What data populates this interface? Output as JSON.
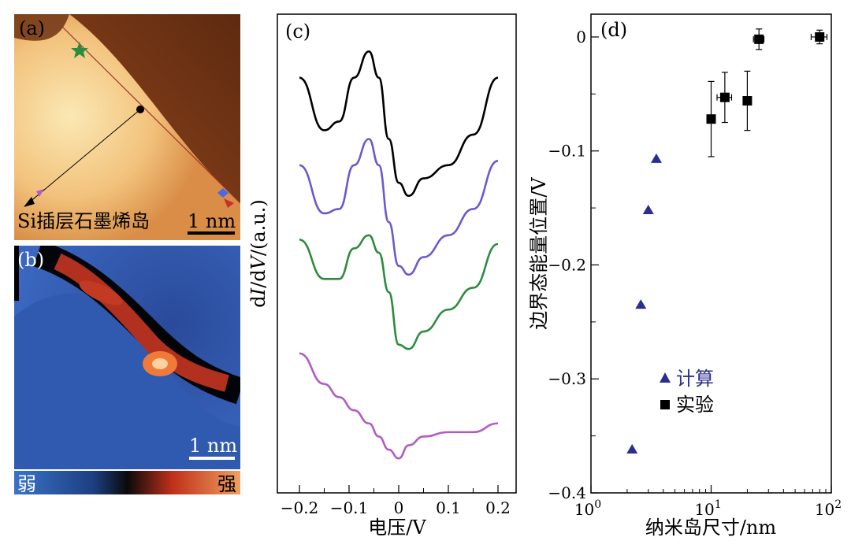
{
  "panel_a": {
    "label": "(a)",
    "caption": "Si插层石墨烯岛",
    "scalebar": "1 nm"
  },
  "panel_b": {
    "label": "(b)",
    "scalebar": "1 nm",
    "colorbar_low": "弱",
    "colorbar_high": "强"
  },
  "panel_c": {
    "label": "(c)",
    "ylabel_prefix": "d",
    "ylabel_I": "I",
    "ylabel_mid": "/d",
    "ylabel_V": "V",
    "ylabel_suffix": "/(a.u.)",
    "xlabel": "电压/V",
    "xticks": [
      "−0.2",
      "−0.1",
      "0",
      "0.1",
      "0.2"
    ]
  },
  "panel_d": {
    "label": "(d)",
    "ylabel": "边界态能量位置/V",
    "xlabel": "纳米岛尺寸/nm",
    "yticks": [
      "0",
      "−0.1",
      "−0.2",
      "−0.3",
      "−0.4"
    ],
    "xticks": [
      "10",
      "10",
      "10"
    ],
    "xtick_exps": [
      "0",
      "1",
      "2"
    ],
    "legend": [
      "计算",
      "实验"
    ]
  },
  "chart_data": [
    {
      "type": "line",
      "title": "(c)",
      "xlabel": "电压/V",
      "ylabel": "dI/dV/(a.u.)",
      "xlim": [
        -0.2,
        0.2
      ],
      "x": [
        -0.2,
        -0.15,
        -0.12,
        -0.09,
        -0.06,
        -0.04,
        -0.02,
        0,
        0.02,
        0.05,
        0.1,
        0.15,
        0.2
      ],
      "series": [
        {
          "name": "black",
          "color": "#000000",
          "values": [
            5.6,
            4.4,
            4.6,
            5.6,
            6.2,
            5.6,
            4.2,
            3.2,
            2.9,
            3.3,
            3.6,
            4.3,
            5.6
          ]
        },
        {
          "name": "purple",
          "color": "#6a5acd",
          "values": [
            3.6,
            2.5,
            2.6,
            3.6,
            4.2,
            3.6,
            2.3,
            1.3,
            1.1,
            1.5,
            2.0,
            2.6,
            3.7
          ]
        },
        {
          "name": "green",
          "color": "#2e8b3e",
          "values": [
            1.9,
            1.0,
            1.0,
            1.7,
            2.0,
            1.6,
            0.7,
            -0.5,
            -0.6,
            -0.2,
            0.3,
            0.8,
            1.8
          ]
        },
        {
          "name": "magenta",
          "color": "#b05cc0",
          "values": [
            -0.7,
            -1.4,
            -1.7,
            -2.0,
            -2.3,
            -2.6,
            -2.9,
            -3.1,
            -2.8,
            -2.6,
            -2.5,
            -2.5,
            -2.3
          ]
        }
      ]
    },
    {
      "type": "scatter",
      "title": "(d)",
      "xlabel": "纳米岛尺寸/nm",
      "ylabel": "边界态能量位置/V",
      "xscale": "log",
      "xlim": [
        1,
        100
      ],
      "ylim": [
        -0.4,
        0.02
      ],
      "series": [
        {
          "name": "计算",
          "marker": "triangle",
          "color": "#2a2f8f",
          "points": [
            [
              2.2,
              -0.362
            ],
            [
              2.6,
              -0.235
            ],
            [
              3.0,
              -0.152
            ],
            [
              3.5,
              -0.107
            ]
          ]
        },
        {
          "name": "实验",
          "marker": "square",
          "color": "#000000",
          "points": [
            [
              10,
              -0.072
            ],
            [
              13,
              -0.053
            ],
            [
              20,
              -0.056
            ],
            [
              25,
              -0.002
            ],
            [
              80,
              0.0
            ]
          ],
          "yerr": [
            0.033,
            0.022,
            0.026,
            0.009,
            0.006
          ],
          "xerr": [
            0,
            1.8,
            0,
            2.5,
            12
          ]
        }
      ],
      "legend_position": "bottom-left"
    }
  ]
}
